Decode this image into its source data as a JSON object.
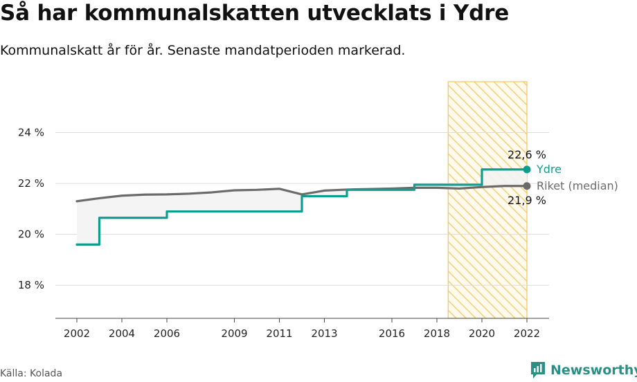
{
  "header": {
    "title": "Så har kommunalskatten utvecklats i Ydre",
    "subtitle": "Kommunalskatt år för år. Senaste mandatperioden markerad."
  },
  "footer": {
    "source": "Källa: Kolada",
    "brand": "Newsworthy",
    "brand_icon": "newsworthy-logo-icon"
  },
  "colors": {
    "ydre": "#0f9e8d",
    "riket": "#6b6b6b",
    "highlight_stroke": "#f2c45c",
    "brand": "#2a8f84"
  },
  "chart_data": {
    "type": "line",
    "title": "Så har kommunalskatten utvecklats i Ydre",
    "subtitle": "Kommunalskatt år för år. Senaste mandatperioden markerad.",
    "x": [
      2002,
      2003,
      2004,
      2005,
      2006,
      2007,
      2008,
      2009,
      2010,
      2011,
      2012,
      2013,
      2014,
      2015,
      2016,
      2017,
      2018,
      2019,
      2020,
      2021,
      2022
    ],
    "x_ticks": [
      2002,
      2004,
      2006,
      2009,
      2011,
      2013,
      2016,
      2018,
      2020,
      2022
    ],
    "y_ticks": [
      18,
      20,
      22,
      24
    ],
    "y_tick_labels": [
      "18 %",
      "20 %",
      "22 %",
      "24 %"
    ],
    "ylim": [
      16.7,
      26
    ],
    "xlim": [
      2001.0,
      2023.0
    ],
    "grid": true,
    "highlight_period": [
      2018.5,
      2022
    ],
    "series": [
      {
        "name": "Ydre",
        "color": "#0f9e8d",
        "step": true,
        "values": [
          19.6,
          20.65,
          20.65,
          20.65,
          20.9,
          20.9,
          20.9,
          20.9,
          20.9,
          20.9,
          21.5,
          21.5,
          21.75,
          21.75,
          21.75,
          21.95,
          21.95,
          21.95,
          22.55,
          22.55,
          22.55
        ]
      },
      {
        "name": "Riket (median)",
        "color": "#6b6b6b",
        "step": false,
        "values": [
          21.3,
          21.42,
          21.52,
          21.56,
          21.57,
          21.6,
          21.65,
          21.73,
          21.75,
          21.79,
          21.57,
          21.72,
          21.76,
          21.78,
          21.8,
          21.83,
          21.83,
          21.8,
          21.86,
          21.9,
          21.9
        ]
      }
    ],
    "end_labels": {
      "ydre_value": "22,6 %",
      "ydre_name": "Ydre",
      "riket_value": "21,9 %",
      "riket_name": "Riket (median)"
    }
  }
}
